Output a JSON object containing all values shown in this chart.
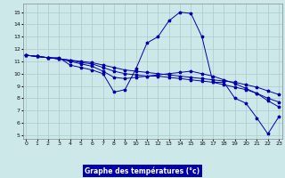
{
  "xlabel": "Graphe des températures (°c)",
  "bg_color": "#cce8e8",
  "grid_color": "#aacccc",
  "line_color": "#0000aa",
  "label_bar_color": "#0000aa",
  "label_text_color": "#ffffff",
  "x_ticks": [
    0,
    1,
    2,
    3,
    4,
    5,
    6,
    7,
    8,
    9,
    10,
    11,
    12,
    13,
    14,
    15,
    16,
    17,
    18,
    19,
    20,
    21,
    22,
    23
  ],
  "y_ticks": [
    5,
    6,
    7,
    8,
    9,
    10,
    11,
    12,
    13,
    14,
    15
  ],
  "ylim": [
    4.7,
    15.7
  ],
  "xlim": [
    -0.3,
    23.3
  ],
  "series": [
    {
      "x": [
        0,
        1,
        2,
        3,
        4,
        5,
        6,
        7,
        8,
        9,
        10,
        11,
        12,
        13,
        14,
        15,
        16,
        17,
        18,
        19,
        20,
        21,
        22,
        23
      ],
      "y": [
        11.5,
        11.4,
        11.3,
        11.3,
        10.7,
        10.5,
        10.3,
        10.0,
        8.5,
        8.7,
        10.4,
        12.5,
        13.0,
        14.3,
        15.0,
        14.9,
        13.0,
        9.3,
        9.3,
        8.0,
        7.6,
        6.4,
        5.1,
        6.5
      ]
    },
    {
      "x": [
        0,
        1,
        2,
        3,
        4,
        5,
        6,
        7,
        8,
        9,
        10,
        11,
        12,
        13,
        14,
        15,
        16,
        17,
        18,
        19,
        20,
        21,
        22,
        23
      ],
      "y": [
        11.5,
        11.4,
        11.3,
        11.2,
        11.0,
        10.8,
        10.6,
        10.2,
        9.7,
        9.6,
        9.7,
        9.8,
        9.9,
        10.0,
        10.1,
        10.2,
        10.0,
        9.8,
        9.5,
        9.2,
        8.8,
        8.4,
        7.8,
        7.3
      ]
    },
    {
      "x": [
        0,
        1,
        2,
        3,
        4,
        5,
        6,
        7,
        8,
        9,
        10,
        11,
        12,
        13,
        14,
        15,
        16,
        17,
        18,
        19,
        20,
        21,
        22,
        23
      ],
      "y": [
        11.5,
        11.4,
        11.3,
        11.2,
        11.1,
        10.9,
        10.8,
        10.5,
        10.2,
        10.0,
        9.9,
        9.8,
        9.8,
        9.7,
        9.6,
        9.5,
        9.4,
        9.3,
        9.1,
        8.9,
        8.7,
        8.4,
        8.0,
        7.7
      ]
    },
    {
      "x": [
        0,
        1,
        2,
        3,
        4,
        5,
        6,
        7,
        8,
        9,
        10,
        11,
        12,
        13,
        14,
        15,
        16,
        17,
        18,
        19,
        20,
        21,
        22,
        23
      ],
      "y": [
        11.5,
        11.4,
        11.3,
        11.2,
        11.1,
        11.0,
        10.9,
        10.7,
        10.5,
        10.3,
        10.2,
        10.1,
        10.0,
        9.9,
        9.8,
        9.7,
        9.6,
        9.5,
        9.4,
        9.3,
        9.1,
        8.9,
        8.6,
        8.3
      ]
    }
  ]
}
